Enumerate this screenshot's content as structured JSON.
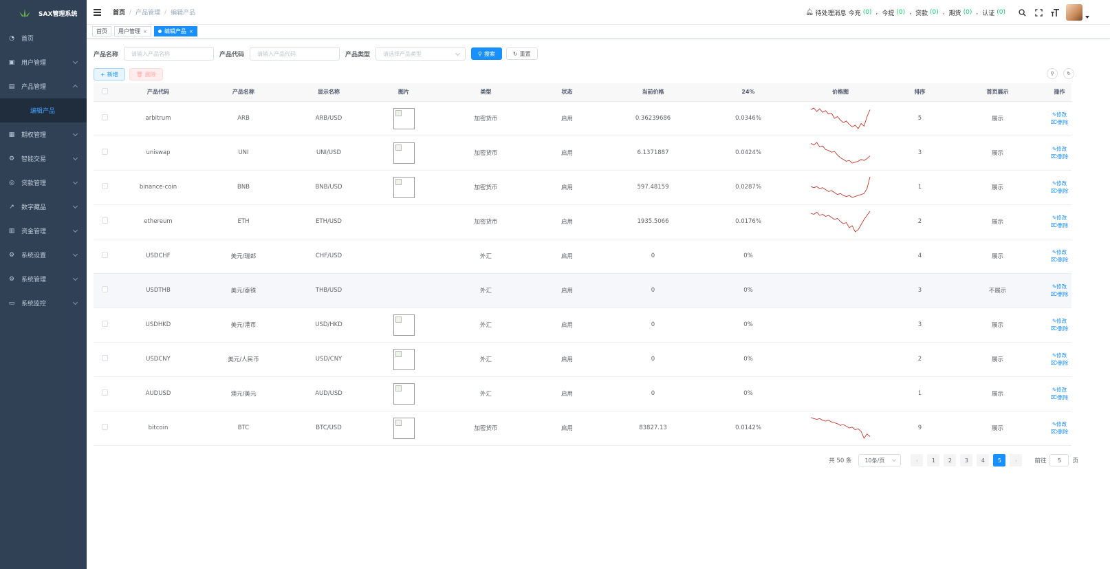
{
  "sidebar": {
    "logo": "SAX管理系统",
    "items": [
      {
        "label": "首页",
        "icon": "dashboard-icon"
      },
      {
        "label": "用户管理",
        "icon": "user-icon"
      },
      {
        "label": "产品管理",
        "icon": "document-icon",
        "expanded": true
      },
      {
        "label": "期权管理",
        "icon": "chart-icon"
      },
      {
        "label": "智能交易",
        "icon": "gear-icon"
      },
      {
        "label": "贷款管理",
        "icon": "loan-icon"
      },
      {
        "label": "数字藏品",
        "icon": "trend-icon"
      },
      {
        "label": "资金管理",
        "icon": "money-icon"
      },
      {
        "label": "系统设置",
        "icon": "settings-icon"
      },
      {
        "label": "系统管理",
        "icon": "settings-icon"
      },
      {
        "label": "系统监控",
        "icon": "monitor-icon"
      }
    ],
    "sub_item": "编辑产品"
  },
  "header": {
    "breadcrumb": [
      "首页",
      "产品管理",
      "编辑产品"
    ],
    "pending_label": "待处理消息",
    "stats": [
      {
        "label": "今充",
        "count": "(0)"
      },
      {
        "label": "今提",
        "count": "(0)"
      },
      {
        "label": "贷款",
        "count": "(0)"
      },
      {
        "label": "期货",
        "count": "(0)"
      },
      {
        "label": "认证",
        "count": "(0)"
      }
    ]
  },
  "tags": [
    "首页",
    "用户管理",
    "编辑产品"
  ],
  "search": {
    "name_label": "产品名称",
    "name_placeholder": "请输入产品名称",
    "code_label": "产品代码",
    "code_placeholder": "请输入产品代码",
    "type_label": "产品类型",
    "type_placeholder": "请选择产品类型",
    "search_btn": "搜索",
    "reset_btn": "重置"
  },
  "toolbar": {
    "add": "新增",
    "delete": "删除"
  },
  "table": {
    "columns": [
      "产品代码",
      "产品名称",
      "显示名称",
      "图片",
      "类型",
      "状态",
      "当前价格",
      "24%",
      "价格图",
      "排序",
      "首页展示",
      "操作"
    ],
    "edit_label": "修改",
    "delete_label": "删除",
    "rows": [
      {
        "code": "arbitrum",
        "name": "ARB",
        "display": "ARB/USD",
        "img": true,
        "type": "加密货币",
        "status": "启用",
        "price": "0.36239686",
        "change": "0.0346%",
        "chart": [
          30,
          28,
          32,
          29,
          33,
          31,
          35,
          34,
          40,
          38,
          42,
          45,
          43,
          47,
          50,
          48,
          52,
          46,
          49,
          38,
          30
        ],
        "sort": "5",
        "show": "展示"
      },
      {
        "code": "uniswap",
        "name": "UNI",
        "display": "UNI/USD",
        "img": true,
        "type": "加密货币",
        "status": "启用",
        "price": "6.1371887",
        "change": "0.0424%",
        "chart": [
          28,
          30,
          27,
          32,
          31,
          35,
          36,
          38,
          37,
          41,
          44,
          46,
          48,
          47,
          50,
          49,
          48,
          46,
          47,
          45,
          42
        ],
        "sort": "3",
        "show": "展示"
      },
      {
        "code": "binance-coin",
        "name": "BNB",
        "display": "BNB/USD",
        "img": true,
        "type": "加密货币",
        "status": "启用",
        "price": "597.48159",
        "change": "0.0287%",
        "chart": [
          38,
          39,
          38,
          40,
          39,
          41,
          43,
          42,
          44,
          46,
          45,
          47,
          48,
          47,
          49,
          48,
          47,
          46,
          45,
          40,
          28
        ],
        "sort": "1",
        "show": "展示"
      },
      {
        "code": "ethereum",
        "name": "ETH",
        "display": "ETH/USD",
        "img": false,
        "type": "加密货币",
        "status": "启用",
        "price": "1935.5066",
        "change": "0.0176%",
        "chart": [
          34,
          35,
          33,
          36,
          35,
          37,
          36,
          38,
          40,
          39,
          42,
          44,
          43,
          48,
          46,
          52,
          50,
          45,
          40,
          36,
          32
        ],
        "sort": "2",
        "show": "展示"
      },
      {
        "code": "USDCHF",
        "name": "美元/瑞郎",
        "display": "CHF/USD",
        "img": false,
        "type": "外汇",
        "status": "启用",
        "price": "0",
        "change": "0%",
        "chart": null,
        "sort": "4",
        "show": "展示"
      },
      {
        "code": "USDTHB",
        "name": "美元/泰铢",
        "display": "THB/USD",
        "img": false,
        "type": "外汇",
        "status": "启用",
        "price": "0",
        "change": "0%",
        "chart": null,
        "sort": "3",
        "show": "不展示"
      },
      {
        "code": "USDHKD",
        "name": "美元/港币",
        "display": "USD/HKD",
        "img": true,
        "type": "外汇",
        "status": "启用",
        "price": "0",
        "change": "0%",
        "chart": null,
        "sort": "3",
        "show": "展示"
      },
      {
        "code": "USDCNY",
        "name": "美元/人民币",
        "display": "USD/CNY",
        "img": true,
        "type": "外汇",
        "status": "启用",
        "price": "0",
        "change": "0%",
        "chart": null,
        "sort": "2",
        "show": "展示"
      },
      {
        "code": "AUDUSD",
        "name": "澳元/美元",
        "display": "AUD/USD",
        "img": true,
        "type": "外汇",
        "status": "启用",
        "price": "0",
        "change": "0%",
        "chart": null,
        "sort": "1",
        "show": "展示"
      },
      {
        "code": "bitcoin",
        "name": "BTC",
        "display": "BTC/USD",
        "img": true,
        "type": "加密货币",
        "status": "启用",
        "price": "83827.13",
        "change": "0.0142%",
        "chart": [
          36,
          37,
          38,
          37,
          39,
          40,
          39,
          41,
          42,
          43,
          45,
          44,
          46,
          48,
          47,
          50,
          49,
          52,
          60,
          55,
          58
        ],
        "sort": "9",
        "show": "展示"
      }
    ]
  },
  "pagination": {
    "total": "共 50 条",
    "page_size": "10条/页",
    "pages": [
      "1",
      "2",
      "3",
      "4",
      "5"
    ],
    "current": "5",
    "jump_prefix": "前往",
    "jump_value": "5",
    "jump_suffix": "页"
  },
  "colors": {
    "sidebar_bg": "#304156",
    "primary": "#1890ff",
    "negative": "#c0392b"
  }
}
